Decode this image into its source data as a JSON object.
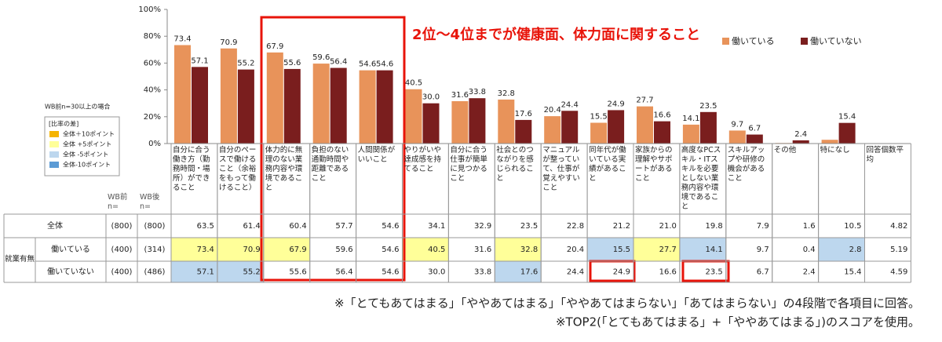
{
  "chart_data": {
    "type": "bar",
    "categories": [
      "自分に合う働き方（勤務時間・場所）ができること",
      "自分のペースで働けること（余裕をもって働けること）",
      "体力的に無理のない業務内容や環境であること",
      "負担のない通勤時間や距離であること",
      "人間関係がいいこと",
      "やりがいや達成感を持てること",
      "自分に合う仕事が簡単に見つかること",
      "社会とのつながりを感じられること",
      "マニュアルが整っていて、仕事が覚えやすいこと",
      "同年代が働いている実績があること",
      "家族からの理解やサポートがあること",
      "高度なPCスキル・ITスキルを必要としない業務内容や環境であること",
      "スキルアップや研修の機会があること",
      "その他",
      "特になし"
    ],
    "series": [
      {
        "name": "働いている",
        "color": "#E8935A",
        "values": [
          73.4,
          70.9,
          67.9,
          59.6,
          54.6,
          40.5,
          31.6,
          32.8,
          20.4,
          15.5,
          27.7,
          14.1,
          9.7,
          0.4,
          2.8
        ],
        "value_labels": [
          "73.4",
          "70.9",
          "67.9",
          "59.6",
          "54.6",
          "40.5",
          "31.6",
          "32.8",
          "20.4",
          "15.5",
          "27.7",
          "14.1",
          "9.7",
          null,
          null
        ]
      },
      {
        "name": "働いていない",
        "color": "#7A1E1E",
        "values": [
          57.1,
          55.2,
          55.6,
          56.4,
          54.6,
          30.0,
          33.8,
          17.6,
          24.4,
          24.9,
          16.6,
          23.5,
          6.7,
          2.4,
          15.4
        ],
        "value_labels": [
          "57.1",
          "55.2",
          "55.6",
          "56.4",
          "54.6",
          "30.0",
          "33.8",
          "17.6",
          "24.4",
          "24.9",
          "16.6",
          "23.5",
          "6.7",
          "2.4",
          "15.4"
        ]
      }
    ],
    "ylim": [
      0,
      100
    ],
    "yticks": [
      {
        "value": 0,
        "label": "0%"
      },
      {
        "value": 20,
        "label": "20%"
      },
      {
        "value": 40,
        "label": "40%"
      },
      {
        "value": 60,
        "label": "60%"
      },
      {
        "value": 80,
        "label": "80%"
      },
      {
        "value": 100,
        "label": "100%"
      }
    ],
    "grid": false
  },
  "annotation": "2位～4位までが健康面、体力面に関すること",
  "shade_legend": {
    "note": "WB前n=30以上の場合",
    "title": "[比率の差]",
    "items": [
      {
        "label": "全体＋10ポイント",
        "color": "#F5B400"
      },
      {
        "label": "全体 +5ポイント",
        "color": "#FFFF99"
      },
      {
        "label": "全体 -5ポイント",
        "color": "#BDD7EE"
      },
      {
        "label": "全体-10ポイント",
        "color": "#5B9BD5"
      }
    ]
  },
  "table": {
    "n_headers": [
      "WB前\nn=",
      "WB後\nn="
    ],
    "extra_column": "回答個数平均",
    "group": "就業有無",
    "rows": [
      {
        "label": "全体",
        "n_before": "(800)",
        "n_after": "(800)",
        "cells": [
          "63.5",
          "61.4",
          "60.4",
          "57.7",
          "54.6",
          "34.1",
          "32.9",
          "23.5",
          "22.8",
          "21.2",
          "21.0",
          "19.8",
          "7.9",
          "1.6",
          "10.5",
          "4.82"
        ]
      },
      {
        "label": "働いている",
        "n_before": "(400)",
        "n_after": "(314)",
        "cells": [
          "73.4",
          "70.9",
          "67.9",
          "59.6",
          "54.6",
          "40.5",
          "31.6",
          "32.8",
          "20.4",
          "15.5",
          "27.7",
          "14.1",
          "9.7",
          "0.4",
          "2.8",
          "5.19"
        ],
        "shading": [
          1,
          1,
          1,
          null,
          null,
          1,
          null,
          1,
          null,
          2,
          1,
          2,
          null,
          null,
          2,
          null
        ]
      },
      {
        "label": "働いていない",
        "n_before": "(400)",
        "n_after": "(486)",
        "cells": [
          "57.1",
          "55.2",
          "55.6",
          "56.4",
          "54.6",
          "30.0",
          "33.8",
          "17.6",
          "24.4",
          "24.9",
          "16.6",
          "23.5",
          "6.7",
          "2.4",
          "15.4",
          "4.59"
        ],
        "shading": [
          2,
          2,
          null,
          null,
          null,
          null,
          null,
          2,
          null,
          null,
          null,
          null,
          null,
          null,
          null,
          null
        ]
      }
    ]
  },
  "footnotes": [
    "※「とてもあてはまる」「ややあてはまる」「ややあてはまらない」「あてはまらない」の4段階で各項目に回答。",
    "※TOP2(「とてもあてはまる」+「ややあてはまる」)のスコアを使用。"
  ]
}
